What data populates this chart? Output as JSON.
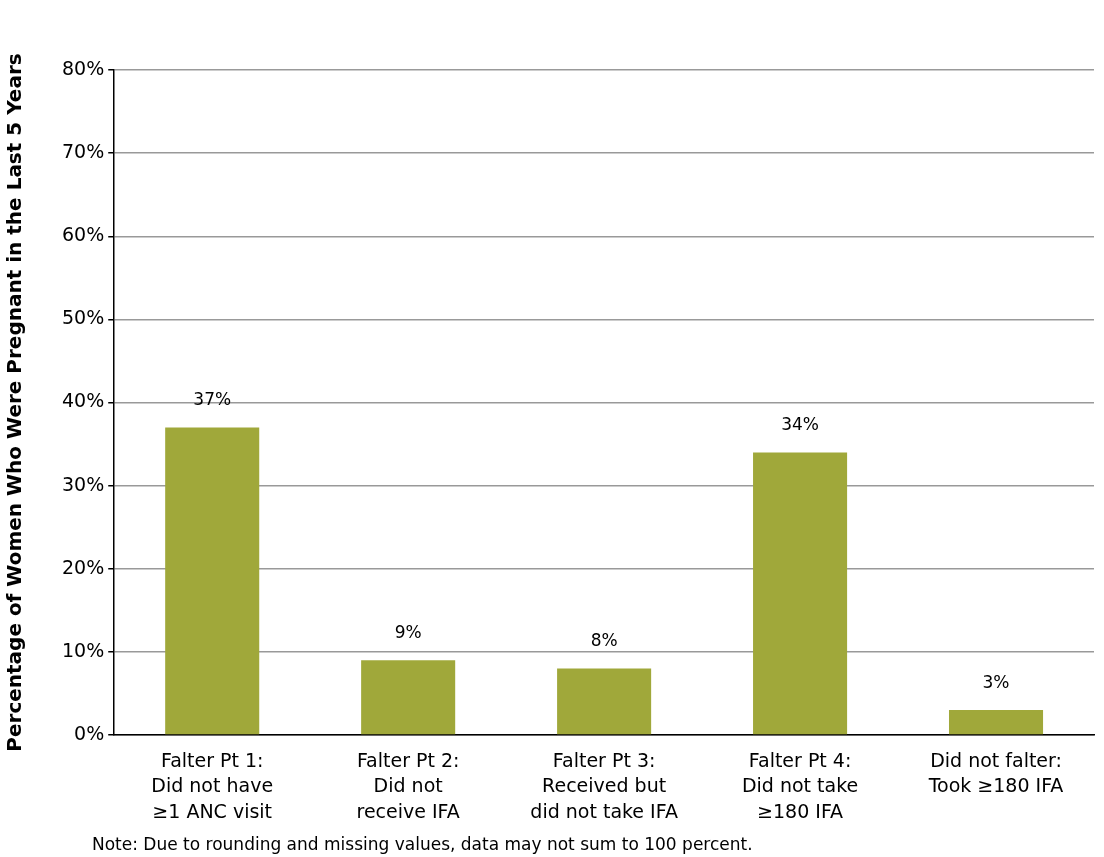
{
  "chart_data": {
    "type": "bar",
    "categories": [
      "Falter Pt 1:\nDid not have\n≥1 ANC visit",
      "Falter Pt 2:\nDid not\nreceive IFA",
      "Falter Pt 3:\nReceived but\ndid not take IFA",
      "Falter Pt 4:\nDid not take\n≥180 IFA",
      "Did not falter:\nTook ≥180 IFA"
    ],
    "values": [
      37,
      9,
      8,
      34,
      3
    ],
    "color": "#a0a83a",
    "value_labels": [
      "37%",
      "9%",
      "8%",
      "34%",
      "3%"
    ],
    "ylabel": "Percentage of Women Who Were Pregnant in the Last 5 Years",
    "ylim": [
      0,
      80
    ],
    "yticks": [
      {
        "value": 0,
        "label": "0%"
      },
      {
        "value": 10,
        "label": "10%"
      },
      {
        "value": 20,
        "label": "20%"
      },
      {
        "value": 30,
        "label": "30%"
      },
      {
        "value": 40,
        "label": "40%"
      },
      {
        "value": 50,
        "label": "50%"
      },
      {
        "value": 60,
        "label": "60%"
      },
      {
        "value": 70,
        "label": "70%"
      },
      {
        "value": 80,
        "label": "80%"
      }
    ],
    "grid": "y",
    "legend": false,
    "annotations": [
      "Note: Due to rounding and missing values, data may not sum to 100 percent."
    ]
  }
}
